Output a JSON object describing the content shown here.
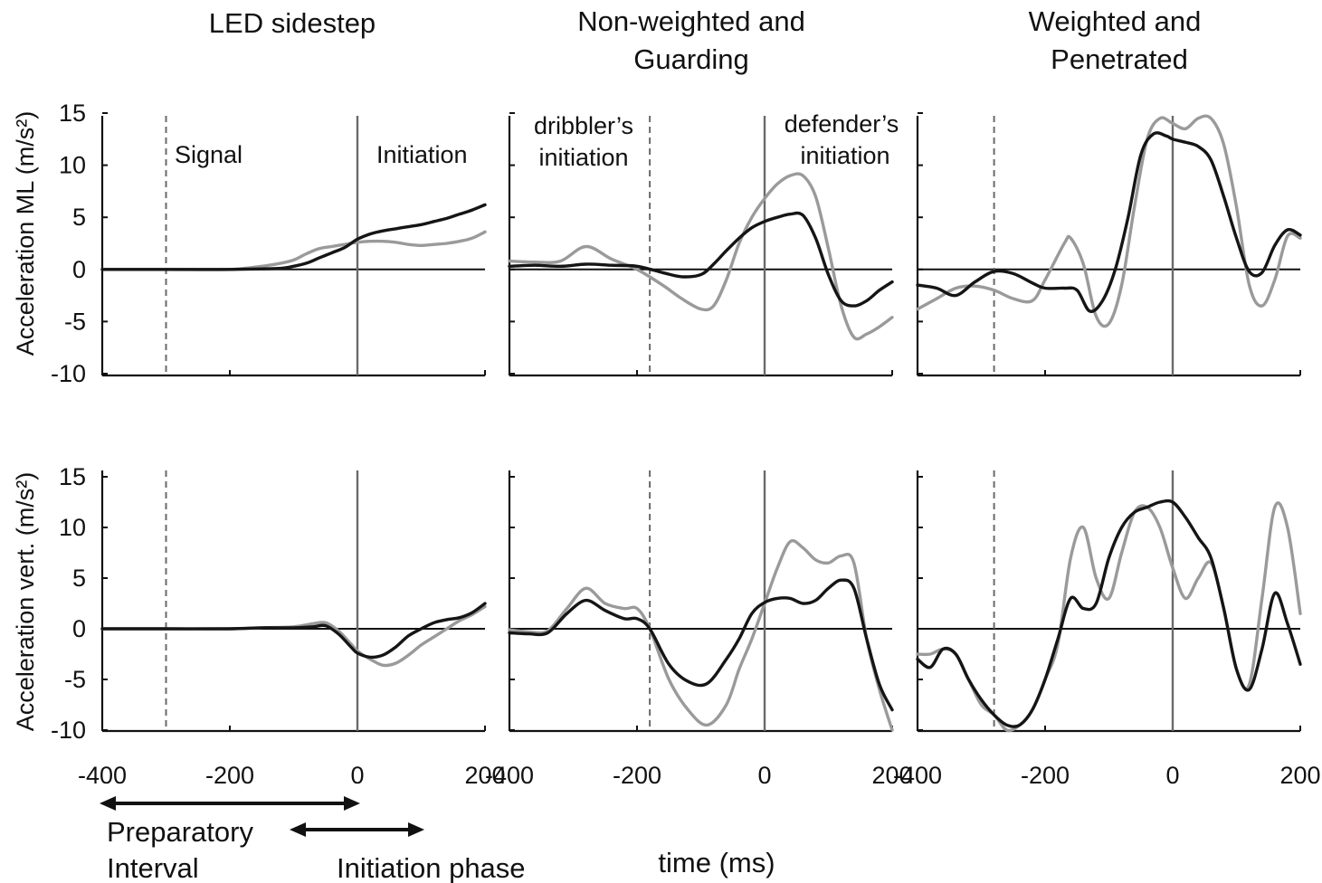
{
  "colors": {
    "black_series": "#151515",
    "gray_series": "#9a9a9a",
    "axis": "#111111",
    "marker": "#6a6a6a"
  },
  "column_titles": [
    [
      "LED sidestep"
    ],
    [
      "Non-weighted and",
      "Guarding"
    ],
    [
      "Weighted and",
      "Penetrated"
    ]
  ],
  "ylabels": [
    "Acceleration ML  (m/s²)",
    "Acceleration vert. (m/s²)"
  ],
  "xlabel": "time (ms)",
  "annotations": {
    "signal": "Signal",
    "initiation": "Initiation",
    "dribbler": [
      "dribbler’s",
      "initiation"
    ],
    "defender": [
      "defender’s",
      "initiation"
    ],
    "preparatory": [
      "Preparatory",
      "Interval"
    ],
    "initiation_phase": "Initiation phase"
  },
  "chart_data": [
    {
      "type": "line",
      "panel": "LED sidestep — ML",
      "xlim": [
        -400,
        200
      ],
      "ylim": [
        -10,
        15
      ],
      "xticks": [
        -400,
        -200,
        0,
        200
      ],
      "yticks": [
        15,
        10,
        5,
        0,
        -5,
        -10
      ],
      "dashed_marker_x": -300,
      "solid_marker_x": 0,
      "series": [
        {
          "color": "black",
          "x": [
            -400,
            -300,
            -200,
            -150,
            -120,
            -100,
            -80,
            -60,
            -40,
            -20,
            0,
            20,
            40,
            60,
            80,
            100,
            120,
            140,
            160,
            180,
            200
          ],
          "y": [
            0,
            0,
            0,
            0.05,
            0.1,
            0.3,
            0.6,
            1.1,
            1.6,
            2.1,
            2.9,
            3.4,
            3.7,
            3.9,
            4.1,
            4.3,
            4.6,
            4.9,
            5.3,
            5.7,
            6.2
          ]
        },
        {
          "color": "gray",
          "x": [
            -400,
            -300,
            -200,
            -150,
            -120,
            -100,
            -80,
            -60,
            -40,
            -20,
            0,
            20,
            40,
            60,
            80,
            100,
            120,
            140,
            160,
            180,
            200
          ],
          "y": [
            0,
            0,
            0,
            0.3,
            0.6,
            0.9,
            1.5,
            2.0,
            2.2,
            2.4,
            2.6,
            2.7,
            2.7,
            2.6,
            2.4,
            2.3,
            2.4,
            2.5,
            2.7,
            3.0,
            3.6
          ]
        }
      ]
    },
    {
      "type": "line",
      "panel": "Non-weighted and Guarding — ML",
      "xlim": [
        -400,
        200
      ],
      "ylim": [
        -10,
        15
      ],
      "xticks": [
        -400,
        -200,
        0,
        200
      ],
      "yticks": [
        15,
        10,
        5,
        0,
        -5,
        -10
      ],
      "dashed_marker_x": -180,
      "solid_marker_x": 0,
      "series": [
        {
          "color": "black",
          "x": [
            -400,
            -360,
            -320,
            -280,
            -240,
            -200,
            -160,
            -130,
            -100,
            -80,
            -60,
            -40,
            -20,
            0,
            20,
            40,
            60,
            80,
            100,
            120,
            140,
            160,
            180,
            200
          ],
          "y": [
            0.3,
            0.4,
            0.3,
            0.5,
            0.4,
            0.3,
            -0.3,
            -0.7,
            -0.5,
            0.5,
            1.8,
            3.0,
            4.0,
            4.6,
            5.0,
            5.3,
            5.2,
            3.0,
            -0.5,
            -3.0,
            -3.5,
            -3.0,
            -2.0,
            -1.2
          ]
        },
        {
          "color": "gray",
          "x": [
            -400,
            -360,
            -320,
            -280,
            -240,
            -200,
            -160,
            -130,
            -100,
            -80,
            -60,
            -40,
            -20,
            0,
            20,
            40,
            60,
            80,
            100,
            120,
            140,
            160,
            180,
            200
          ],
          "y": [
            0.8,
            0.7,
            0.8,
            2.2,
            1.0,
            0.0,
            -1.5,
            -2.8,
            -3.8,
            -3.5,
            -1.0,
            2.5,
            5.0,
            6.8,
            8.2,
            9.0,
            9.0,
            7.0,
            2.0,
            -3.5,
            -6.5,
            -6.2,
            -5.5,
            -4.6
          ]
        }
      ]
    },
    {
      "type": "line",
      "panel": "Weighted and Penetrated — ML",
      "xlim": [
        -400,
        200
      ],
      "ylim": [
        -10,
        15
      ],
      "xticks": [
        -400,
        -200,
        0,
        200
      ],
      "yticks": [
        15,
        10,
        5,
        0,
        -5,
        -10
      ],
      "dashed_marker_x": -280,
      "solid_marker_x": 0,
      "series": [
        {
          "color": "black",
          "x": [
            -400,
            -370,
            -340,
            -310,
            -280,
            -250,
            -220,
            -200,
            -170,
            -150,
            -130,
            -110,
            -90,
            -70,
            -50,
            -30,
            -10,
            0,
            20,
            40,
            60,
            80,
            100,
            120,
            140,
            160,
            180,
            200
          ],
          "y": [
            -1.5,
            -1.8,
            -2.5,
            -1.2,
            -0.2,
            -0.4,
            -1.3,
            -1.8,
            -1.8,
            -2.0,
            -4.0,
            -3.0,
            0.0,
            5.0,
            11.0,
            13.0,
            12.8,
            12.5,
            12.2,
            11.8,
            10.5,
            7.0,
            3.0,
            -0.2,
            -0.3,
            2.3,
            3.8,
            3.3
          ]
        },
        {
          "color": "gray",
          "x": [
            -400,
            -370,
            -340,
            -310,
            -280,
            -250,
            -220,
            -200,
            -170,
            -160,
            -140,
            -120,
            -100,
            -80,
            -60,
            -40,
            -20,
            0,
            20,
            40,
            60,
            80,
            100,
            120,
            140,
            160,
            180,
            200
          ],
          "y": [
            -3.8,
            -2.8,
            -1.8,
            -1.6,
            -2.0,
            -2.8,
            -3.0,
            -1.0,
            2.5,
            3.0,
            0.5,
            -4.5,
            -5.2,
            -1.5,
            6.0,
            12.5,
            14.5,
            14.0,
            13.5,
            14.5,
            14.5,
            12.0,
            6.0,
            -1.5,
            -3.5,
            -1.0,
            3.2,
            3.0
          ]
        }
      ]
    },
    {
      "type": "line",
      "panel": "LED sidestep — vertical",
      "xlim": [
        -400,
        200
      ],
      "ylim": [
        -10,
        15
      ],
      "xticks": [
        -400,
        -200,
        0,
        200
      ],
      "yticks": [
        15,
        10,
        5,
        0,
        -5,
        -10
      ],
      "dashed_marker_x": -300,
      "solid_marker_x": 0,
      "series": [
        {
          "color": "black",
          "x": [
            -400,
            -300,
            -200,
            -150,
            -100,
            -70,
            -50,
            -30,
            -10,
            0,
            20,
            40,
            60,
            80,
            100,
            120,
            140,
            160,
            180,
            200
          ],
          "y": [
            0,
            0,
            0,
            0.1,
            0.1,
            0.2,
            0.3,
            -0.5,
            -1.8,
            -2.4,
            -2.8,
            -2.6,
            -1.8,
            -0.7,
            0.0,
            0.6,
            0.9,
            1.1,
            1.6,
            2.5
          ]
        },
        {
          "color": "gray",
          "x": [
            -400,
            -300,
            -200,
            -150,
            -100,
            -70,
            -50,
            -30,
            -10,
            0,
            20,
            40,
            60,
            80,
            100,
            120,
            140,
            160,
            180,
            200
          ],
          "y": [
            0,
            0,
            0,
            0.1,
            0.2,
            0.5,
            0.6,
            -0.2,
            -1.5,
            -2.2,
            -3.0,
            -3.6,
            -3.4,
            -2.6,
            -1.6,
            -0.8,
            0.0,
            0.8,
            1.4,
            2.2
          ]
        }
      ]
    },
    {
      "type": "line",
      "panel": "Non-weighted and Guarding — vertical",
      "xlim": [
        -400,
        200
      ],
      "ylim": [
        -10,
        15
      ],
      "xticks": [
        -400,
        -200,
        0,
        200
      ],
      "yticks": [
        15,
        10,
        5,
        0,
        -5,
        -10
      ],
      "dashed_marker_x": -180,
      "solid_marker_x": 0,
      "series": [
        {
          "color": "black",
          "x": [
            -400,
            -370,
            -340,
            -310,
            -280,
            -250,
            -220,
            -200,
            -180,
            -150,
            -120,
            -90,
            -60,
            -40,
            -20,
            0,
            20,
            40,
            60,
            80,
            100,
            120,
            140,
            160,
            180,
            200
          ],
          "y": [
            -0.4,
            -0.5,
            -0.4,
            1.5,
            2.8,
            1.8,
            1.0,
            1.0,
            0.0,
            -3.5,
            -5.2,
            -5.4,
            -3.0,
            -1.0,
            1.5,
            2.6,
            3.0,
            3.0,
            2.5,
            2.8,
            4.0,
            4.8,
            4.0,
            -1.0,
            -5.5,
            -8.0
          ]
        },
        {
          "color": "gray",
          "x": [
            -400,
            -370,
            -340,
            -310,
            -280,
            -250,
            -220,
            -200,
            -180,
            -150,
            -120,
            -90,
            -60,
            -40,
            -20,
            0,
            20,
            40,
            60,
            80,
            100,
            120,
            140,
            160,
            180,
            200
          ],
          "y": [
            -0.1,
            -0.3,
            -0.2,
            2.0,
            4.0,
            2.5,
            2.0,
            2.0,
            0.0,
            -5.0,
            -8.0,
            -9.5,
            -7.5,
            -4.0,
            -1.0,
            2.5,
            6.0,
            8.6,
            8.0,
            6.8,
            6.5,
            7.2,
            6.5,
            -1.0,
            -6.0,
            -10.0
          ]
        }
      ]
    },
    {
      "type": "line",
      "panel": "Weighted and Penetrated — vertical",
      "xlim": [
        -400,
        200
      ],
      "ylim": [
        -10,
        15
      ],
      "xticks": [
        -400,
        -200,
        0,
        200
      ],
      "yticks": [
        15,
        10,
        5,
        0,
        -5,
        -10
      ],
      "dashed_marker_x": -280,
      "solid_marker_x": 0,
      "series": [
        {
          "color": "black",
          "x": [
            -400,
            -380,
            -360,
            -340,
            -320,
            -300,
            -280,
            -260,
            -240,
            -220,
            -200,
            -180,
            -160,
            -140,
            -120,
            -100,
            -80,
            -60,
            -40,
            -20,
            0,
            20,
            40,
            60,
            80,
            100,
            120,
            140,
            160,
            180,
            200
          ],
          "y": [
            -3.0,
            -3.8,
            -2.0,
            -2.5,
            -5.0,
            -7.0,
            -8.5,
            -9.5,
            -9.5,
            -8.0,
            -5.0,
            -1.0,
            3.0,
            2.0,
            2.5,
            7.0,
            10.0,
            11.5,
            12.0,
            12.5,
            12.5,
            11.0,
            9.0,
            7.0,
            2.0,
            -4.0,
            -6.0,
            -2.0,
            3.5,
            0.5,
            -3.5
          ]
        },
        {
          "color": "gray",
          "x": [
            -400,
            -380,
            -360,
            -340,
            -320,
            -300,
            -280,
            -260,
            -240,
            -220,
            -200,
            -180,
            -160,
            -140,
            -120,
            -100,
            -80,
            -60,
            -40,
            -20,
            0,
            20,
            40,
            60,
            80,
            100,
            120,
            140,
            160,
            180,
            200
          ],
          "y": [
            -2.5,
            -2.5,
            -2.0,
            -2.5,
            -5.0,
            -7.5,
            -8.5,
            -10.0,
            -9.5,
            -8.0,
            -5.0,
            -1.5,
            7.0,
            10.0,
            5.0,
            3.0,
            7.5,
            11.5,
            12.0,
            10.0,
            6.0,
            3.0,
            5.0,
            6.5,
            2.0,
            -4.0,
            -5.5,
            3.0,
            12.0,
            10.0,
            1.5
          ]
        }
      ]
    }
  ]
}
